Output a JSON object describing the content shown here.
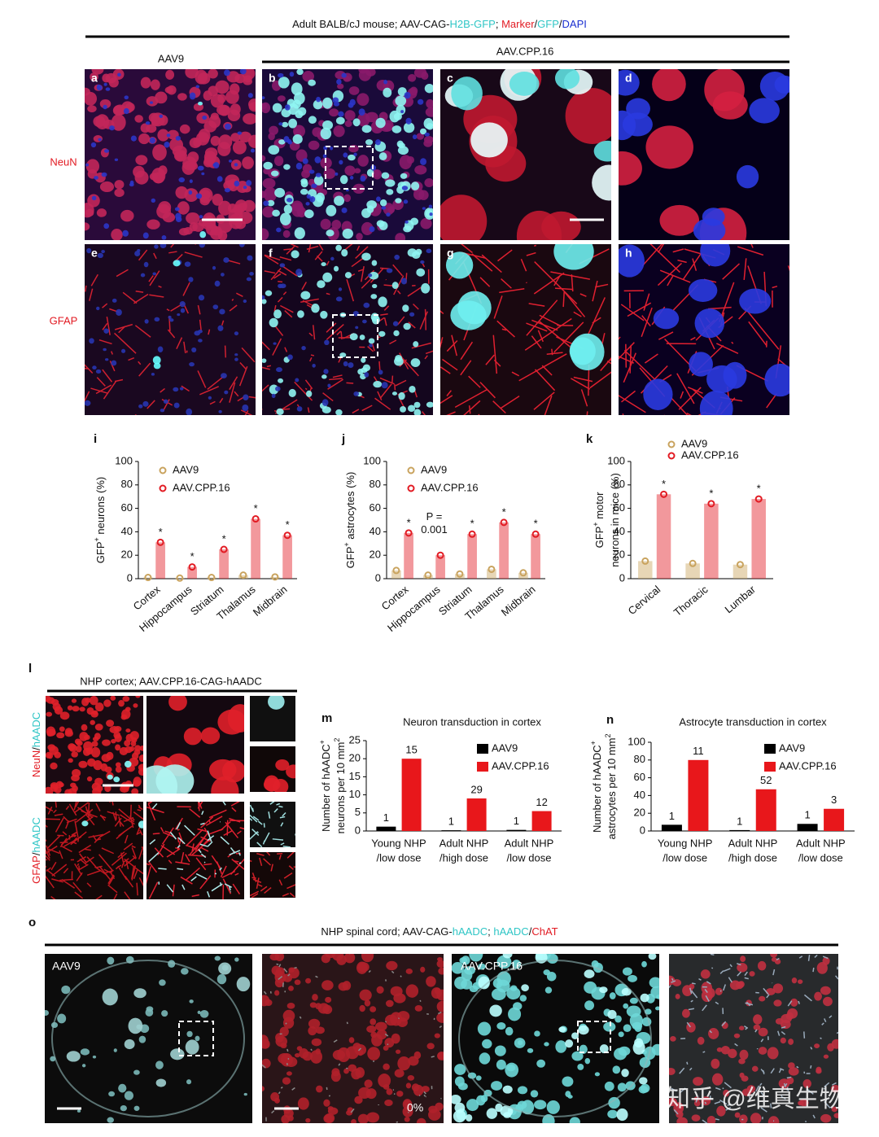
{
  "figure_title": [
    "Adult BALB/cJ mouse; AAV-CAG-",
    "H2B-GFP",
    "; ",
    "Marker",
    "/",
    "GFP",
    "/",
    "DAPI"
  ],
  "group_labels": [
    "AAV9",
    "AAV.CPP.16"
  ],
  "row_labels": [
    "NeuN",
    "GFAP"
  ],
  "image_panels": [
    "a",
    "b",
    "c",
    "d",
    "e",
    "f",
    "g",
    "h"
  ],
  "chart_data": [
    {
      "type": "bar",
      "panel_label": "i",
      "y_label": [
        [
          "GFP",
          "+",
          " neurons (%)"
        ]
      ],
      "categories": [
        "Cortex",
        "Hippocampus",
        "Striatum",
        "Thalamus",
        "Midbrain"
      ],
      "series": [
        {
          "name": "AAV9",
          "color": "#c9a35e",
          "values": [
            1,
            0.5,
            1,
            3,
            1.5
          ]
        },
        {
          "name": "AAV.CPP.16",
          "color": "#e21b23",
          "values": [
            31,
            10,
            25,
            51,
            37
          ],
          "annotations": [
            "*",
            "*",
            "*",
            "*",
            "*"
          ]
        }
      ],
      "ylim": [
        0,
        100
      ],
      "yticks": [
        0,
        20,
        40,
        60,
        80,
        100
      ],
      "legend_marker": "circle",
      "bar_opacity": 0.45
    },
    {
      "type": "bar",
      "panel_label": "j",
      "y_label": [
        [
          "GFP",
          "+",
          " astrocytes (%)"
        ]
      ],
      "categories": [
        "Cortex",
        "Hippocampus",
        "Striatum",
        "Thalamus",
        "Midbrain"
      ],
      "series": [
        {
          "name": "AAV9",
          "color": "#c9a35e",
          "values": [
            7,
            3,
            4,
            8,
            5
          ]
        },
        {
          "name": "AAV.CPP.16",
          "color": "#e21b23",
          "values": [
            39,
            20,
            38,
            48,
            38
          ],
          "annotations": [
            "*",
            null,
            "*",
            "*",
            "*"
          ]
        }
      ],
      "note": [
        "P =",
        "0.001"
      ],
      "ylim": [
        0,
        100
      ],
      "yticks": [
        0,
        20,
        40,
        60,
        80,
        100
      ],
      "legend_marker": "circle",
      "bar_opacity": 0.45
    },
    {
      "type": "bar",
      "panel_label": "k",
      "y_label": [
        [
          "GFP",
          "+",
          " motor"
        ],
        [
          "neurons in mice (%)"
        ]
      ],
      "categories": [
        "Cervical",
        "Thoracic",
        "Lumbar"
      ],
      "series": [
        {
          "name": "AAV9",
          "color": "#c9a35e",
          "values": [
            15,
            13,
            12
          ]
        },
        {
          "name": "AAV.CPP.16",
          "color": "#e21b23",
          "values": [
            72,
            64,
            68
          ],
          "annotations": [
            "*",
            "*",
            "*"
          ]
        }
      ],
      "ylim": [
        0,
        100
      ],
      "yticks": [
        0,
        20,
        40,
        60,
        80,
        100
      ],
      "legend_marker": "circle",
      "bar_opacity": 0.45
    },
    {
      "type": "bar",
      "panel_label": "m",
      "title": "Neuron transduction in cortex",
      "y_label": [
        [
          "Number of hAADC",
          "+"
        ],
        [
          "neurons per 10 mm",
          "2"
        ]
      ],
      "categories": [
        [
          "Young NHP",
          "/low dose"
        ],
        [
          "Adult NHP",
          "/high dose"
        ],
        [
          "Adult NHP",
          "/low dose"
        ]
      ],
      "series": [
        {
          "name": "AAV9",
          "color": "#000000",
          "values": [
            1.2,
            0.2,
            0.3
          ],
          "annotations": [
            "1",
            "1",
            "1"
          ]
        },
        {
          "name": "AAV.CPP.16",
          "color": "#e8171b",
          "values": [
            20,
            9,
            5.5
          ],
          "annotations": [
            "15",
            "29",
            "12"
          ]
        }
      ],
      "ylim": [
        0,
        25
      ],
      "yticks": [
        0,
        5,
        10,
        15,
        20,
        25
      ],
      "legend_marker": "square",
      "bar_opacity": 1
    },
    {
      "type": "bar",
      "panel_label": "n",
      "title": "Astrocyte transduction in cortex",
      "y_label": [
        [
          "Number of hAADC",
          "+"
        ],
        [
          "astrocytes per 10 mm",
          "2"
        ]
      ],
      "categories": [
        [
          "Young NHP",
          "/low dose"
        ],
        [
          "Adult NHP",
          "/high dose"
        ],
        [
          "Adult NHP",
          "/low dose"
        ]
      ],
      "series": [
        {
          "name": "AAV9",
          "color": "#000000",
          "values": [
            7,
            1,
            8
          ],
          "annotations": [
            "1",
            "1",
            "1"
          ]
        },
        {
          "name": "AAV.CPP.16",
          "color": "#e8171b",
          "values": [
            80,
            47,
            25
          ],
          "annotations": [
            "11",
            "52",
            "3"
          ]
        }
      ],
      "ylim": [
        0,
        100
      ],
      "yticks": [
        0,
        20,
        40,
        60,
        80,
        100
      ],
      "legend_marker": "square",
      "bar_opacity": 1
    }
  ],
  "panel_l": {
    "letter": "l",
    "title": "NHP cortex; AAV.CPP.16-CAG-hAADC",
    "row_labels": [
      [
        "NeuN",
        "/",
        "hAADC"
      ],
      [
        "GFAP",
        "/",
        "hAADC"
      ]
    ]
  },
  "panel_o": {
    "letter": "o",
    "title_parts": [
      "NHP spinal cord; AAV-CAG-",
      "hAADC",
      "; ",
      "hAADC",
      "/",
      "ChAT"
    ],
    "image_labels": [
      "AAV9",
      "AAV.CPP.16"
    ],
    "annotation": "0%"
  },
  "watermark": "知乎 @维真生物"
}
